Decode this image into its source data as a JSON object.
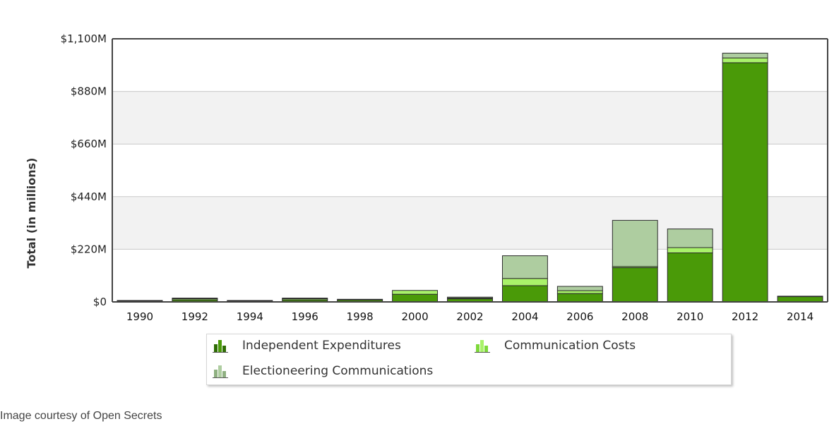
{
  "chart_data": {
    "type": "bar",
    "stacked": true,
    "categories": [
      "1990",
      "1992",
      "1994",
      "1996",
      "1998",
      "2000",
      "2002",
      "2004",
      "2006",
      "2008",
      "2010",
      "2012",
      "2014"
    ],
    "series": [
      {
        "name": "Independent Expenditures",
        "color": "#4a9a08",
        "values": [
          4,
          8,
          4,
          8,
          8,
          32,
          13,
          68,
          35,
          143,
          205,
          1000,
          22
        ]
      },
      {
        "name": "Communication Costs",
        "color": "#a9f26a",
        "values": [
          2,
          5,
          2,
          5,
          3,
          16,
          3,
          30,
          12,
          5,
          22,
          20,
          2
        ]
      },
      {
        "name": "Electioneering Communications",
        "color": "#aecda0",
        "values": [
          0,
          3,
          0,
          3,
          0,
          0,
          4,
          95,
          18,
          193,
          78,
          20,
          0
        ]
      }
    ],
    "y_ticks": [
      "$0",
      "$220M",
      "$440M",
      "$660M",
      "$880M",
      "$1,100M"
    ],
    "ylim": [
      0,
      1100
    ],
    "ylabel": "Total (in millions)",
    "xlabel": "",
    "grid": true,
    "legend_position": "bottom"
  },
  "caption": "Image courtesy of Open Secrets"
}
